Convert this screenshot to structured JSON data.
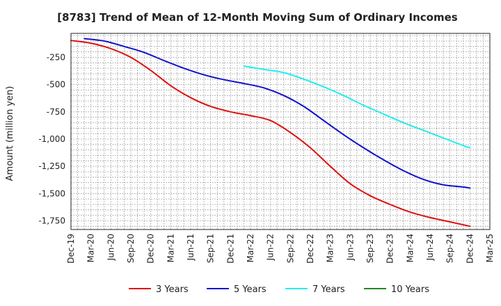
{
  "chart_data": {
    "type": "line",
    "title": "[8783]  Trend of Mean of 12-Month Moving Sum of Ordinary Incomes",
    "xlabel": "",
    "ylabel": "Amount (million yen)",
    "ylim": [
      -1830,
      -30
    ],
    "yticks": [
      -250,
      -500,
      -750,
      -1000,
      -1250,
      -1500,
      -1750
    ],
    "ytick_labels": [
      "-250",
      "-500",
      "-750",
      "-1,000",
      "-1,250",
      "-1,500",
      "-1,750"
    ],
    "x_range": [
      0,
      63
    ],
    "xtick_labels": [
      "Dec-19",
      "Mar-20",
      "Jun-20",
      "Sep-20",
      "Dec-20",
      "Mar-21",
      "Jun-21",
      "Sep-21",
      "Dec-21",
      "Mar-22",
      "Jun-22",
      "Sep-22",
      "Dec-22",
      "Mar-23",
      "Jun-23",
      "Sep-23",
      "Dec-23",
      "Mar-24",
      "Jun-24",
      "Sep-24",
      "Dec-24",
      "Mar-25"
    ],
    "grid": true,
    "legend_position": "bottom",
    "series": [
      {
        "name": "3 Years",
        "color": "#dd1111",
        "x": [
          0,
          3,
          6,
          9,
          12,
          15,
          18,
          21,
          24,
          27,
          30,
          33,
          36,
          39,
          42,
          45,
          48,
          51,
          54,
          57,
          60
        ],
        "values": [
          -95,
          -120,
          -170,
          -250,
          -370,
          -510,
          -620,
          -700,
          -750,
          -785,
          -830,
          -940,
          -1080,
          -1250,
          -1410,
          -1520,
          -1600,
          -1670,
          -1720,
          -1760,
          -1800
        ]
      },
      {
        "name": "5 Years",
        "color": "#1111cc",
        "x": [
          2,
          5,
          8,
          11,
          14,
          17,
          20,
          23,
          26,
          29,
          32,
          35,
          38,
          41,
          44,
          47,
          50,
          53,
          56,
          59,
          60
        ],
        "values": [
          -78,
          -100,
          -150,
          -205,
          -280,
          -350,
          -410,
          -455,
          -490,
          -530,
          -600,
          -700,
          -830,
          -960,
          -1080,
          -1190,
          -1290,
          -1370,
          -1420,
          -1440,
          -1450
        ]
      },
      {
        "name": "7 Years",
        "color": "#22eeee",
        "x": [
          26,
          29,
          32,
          35,
          38,
          41,
          44,
          47,
          50,
          53,
          56,
          59,
          60
        ],
        "values": [
          -330,
          -360,
          -390,
          -450,
          -520,
          -600,
          -690,
          -770,
          -850,
          -920,
          -990,
          -1060,
          -1080
        ]
      },
      {
        "name": "10 Years",
        "color": "#228822",
        "x": [],
        "values": []
      }
    ]
  }
}
